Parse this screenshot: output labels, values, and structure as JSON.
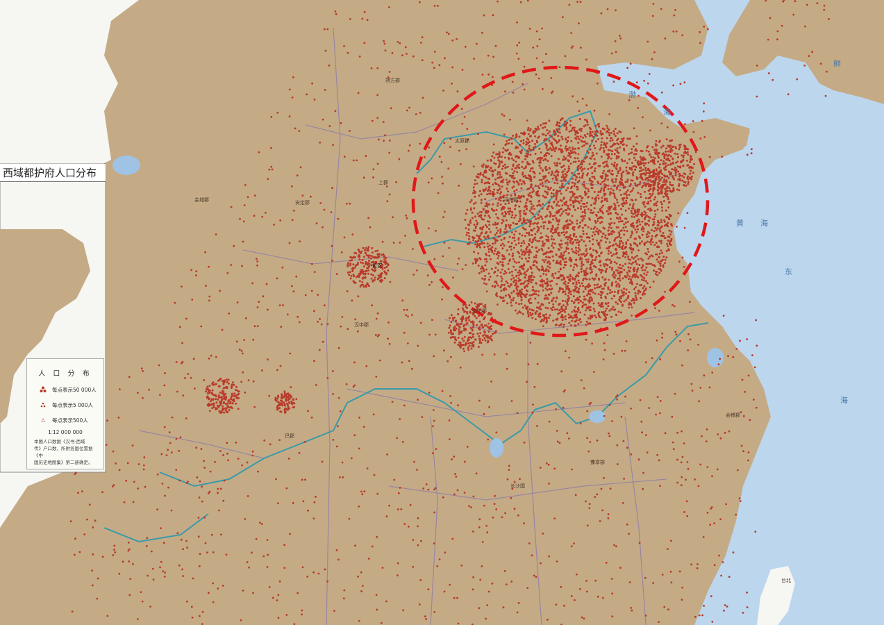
{
  "inset": {
    "title": "西域都护府人口分布"
  },
  "legend": {
    "title": "人 口 分 布",
    "items": [
      {
        "label": "每点表示50 000人",
        "symbol": "triple-dot"
      },
      {
        "label": "每点表示5 000人",
        "symbol": "triangle-dots"
      },
      {
        "label": "每点表示500人",
        "symbol": "small-triangle"
      }
    ],
    "scale": "1∶12 000 000",
    "note": [
      "本图人口数据《汉书·西域",
      "传》户口数，所附各国位置据《中",
      "国历史地图集》第二册确定。"
    ]
  },
  "places": [
    {
      "name": "朔方郡",
      "id": "shuofang"
    },
    {
      "name": "上郡",
      "id": "shangjun"
    },
    {
      "name": "太原郡",
      "id": "taiyuan"
    },
    {
      "name": "河内郡",
      "id": "henei"
    },
    {
      "name": "长安",
      "id": "changan"
    },
    {
      "name": "汉中郡",
      "id": "hanzhong"
    },
    {
      "name": "南阳郡",
      "id": "nanyang"
    },
    {
      "name": "巴郡",
      "id": "bajun"
    },
    {
      "name": "长沙国",
      "id": "changsha"
    },
    {
      "name": "豫章郡",
      "id": "yuzhang"
    },
    {
      "name": "金城郡",
      "id": "jincheng"
    },
    {
      "name": "安定郡",
      "id": "anding"
    },
    {
      "name": "会稽郡",
      "id": "kuaiji"
    },
    {
      "name": "台北",
      "id": "taibei"
    }
  ],
  "seas": [
    {
      "name": "渤",
      "id": "bo"
    },
    {
      "name": "海",
      "id": "hai1"
    },
    {
      "name": "黄",
      "id": "huang"
    },
    {
      "name": "海",
      "id": "hai2"
    },
    {
      "name": "东",
      "id": "dong"
    },
    {
      "name": "海",
      "id": "hai3"
    },
    {
      "name": "鲜",
      "id": "xian"
    }
  ],
  "colors": {
    "land": "#c4ab86",
    "land_light": "#cdb690",
    "white_area": "#f6f6f3",
    "sea": "#bcd6ee",
    "dot": "#b83a2a",
    "highlight": "#e01818",
    "river": "#3a9aa8",
    "boundary": "#8f7ca6"
  },
  "highlight": {
    "shape": "dashed-ellipse",
    "meaning": "dense population core"
  }
}
